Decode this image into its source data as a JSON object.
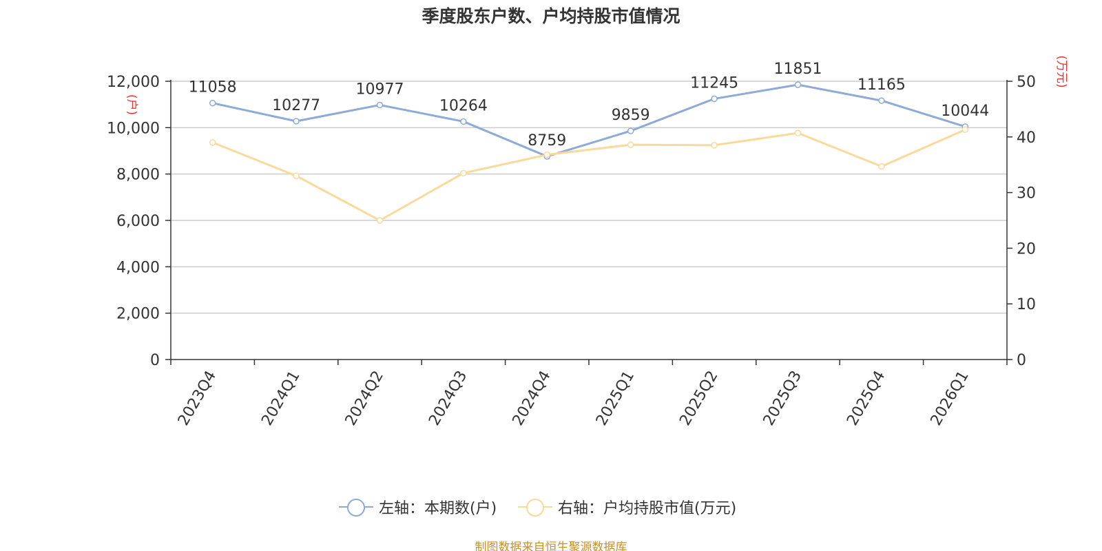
{
  "chart_data": {
    "type": "line",
    "title": "季度股东户数、户均持股市值情况",
    "categories": [
      "2023Q4",
      "2024Q1",
      "2024Q2",
      "2024Q3",
      "2024Q4",
      "2025Q1",
      "2025Q2",
      "2025Q3",
      "2025Q4",
      "2026Q1"
    ],
    "series": [
      {
        "name": "左轴：本期数(户)",
        "axis": "left",
        "color": "#8eaad8",
        "values": [
          11058,
          10277,
          10977,
          10264,
          8759,
          9859,
          11245,
          11851,
          11165,
          10044
        ],
        "labels": [
          "11058",
          "10277",
          "10977",
          "10264",
          "8759",
          "9859",
          "11245",
          "11851",
          "11165",
          "10044"
        ]
      },
      {
        "name": "右轴：户均持股市值(万元)",
        "axis": "right",
        "color": "#fbd99a",
        "values": [
          39.0,
          33.0,
          25.0,
          33.5,
          36.8,
          38.6,
          38.5,
          40.7,
          34.7,
          41.3
        ]
      }
    ],
    "left_axis": {
      "unit_label": "(户)",
      "min": 0,
      "max": 12000,
      "ticks": [
        0,
        2000,
        4000,
        6000,
        8000,
        10000,
        12000
      ],
      "tick_labels": [
        "0",
        "2,000",
        "4,000",
        "6,000",
        "8,000",
        "10,000",
        "12,000"
      ]
    },
    "right_axis": {
      "unit_label": "(万元)",
      "min": 0,
      "max": 50,
      "ticks": [
        0,
        10,
        20,
        30,
        40,
        50
      ],
      "tick_labels": [
        "0",
        "10",
        "20",
        "30",
        "40",
        "50"
      ]
    },
    "grid": true,
    "legend_position": "bottom-center"
  },
  "source": "制图数据来自恒生聚源数据库"
}
